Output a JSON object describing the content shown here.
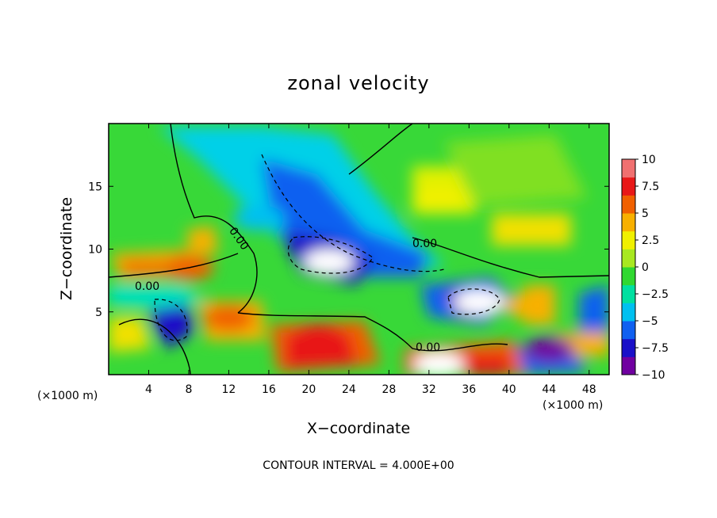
{
  "chart_data": {
    "type": "heatmap",
    "title": "zonal velocity",
    "xlabel": "X−coordinate",
    "ylabel": "Z−coordinate",
    "x_unit_left": "(×1000 m)",
    "x_unit_right": "(×1000 m)",
    "xlim": [
      0,
      50
    ],
    "ylim": [
      0,
      20
    ],
    "x_ticks": [
      4,
      8,
      12,
      16,
      20,
      24,
      28,
      32,
      36,
      40,
      44,
      48
    ],
    "x_tick_labels": [
      "4",
      "8",
      "12",
      "16",
      "20",
      "24",
      "28",
      "32",
      "36",
      "40",
      "44",
      "48"
    ],
    "y_ticks": [
      5,
      10,
      15
    ],
    "y_tick_labels": [
      "5",
      "10",
      "15"
    ],
    "colorbar": {
      "range": [
        -10,
        10
      ],
      "tick_values": [
        10,
        7.5,
        5,
        2.5,
        0,
        -2.5,
        -5,
        -7.5,
        -10
      ],
      "tick_labels": [
        "10",
        "7.5",
        "5",
        "2.5",
        "0",
        "−2.5",
        "−5",
        "−7.5",
        "−10"
      ],
      "colors": [
        "#7000a0",
        "#1a10c8",
        "#1060f0",
        "#00c0f0",
        "#00e0a0",
        "#30d830",
        "#a8e820",
        "#f0f000",
        "#f8b000",
        "#f06000",
        "#e81818",
        "#f07070"
      ]
    },
    "contour_interval_text": "CONTOUR INTERVAL = 4.000E+00",
    "contour_labels": [
      "0.00",
      "0.00",
      "0.00",
      "0.00"
    ],
    "field_features": [
      {
        "x": 22,
        "z": 9,
        "value": -16
      },
      {
        "x": 37,
        "z": 5.8,
        "value": -14
      },
      {
        "x": 15,
        "z": 12.5,
        "value": -4
      },
      {
        "x": 21,
        "z": 3,
        "value": 8
      },
      {
        "x": 33,
        "z": 0.8,
        "value": 10
      },
      {
        "x": 8,
        "z": 8.5,
        "value": 6
      },
      {
        "x": 12,
        "z": 4.5,
        "value": 5
      },
      {
        "x": 42,
        "z": 5.5,
        "value": 4
      },
      {
        "x": 44,
        "z": 2,
        "value": -9
      },
      {
        "x": 33,
        "z": 14,
        "value": 2
      }
    ]
  }
}
